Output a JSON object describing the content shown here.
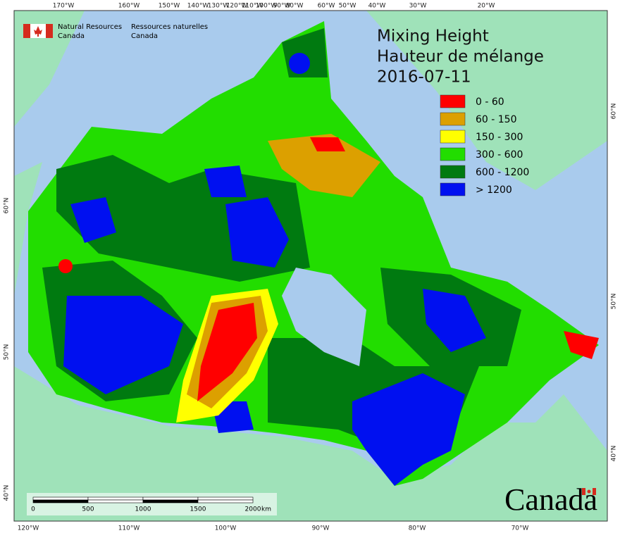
{
  "header": {
    "org_en": [
      "Natural Resources",
      "Canada"
    ],
    "org_fr": [
      "Ressources naturelles",
      "Canada"
    ]
  },
  "title": [
    "Mixing Height",
    "Hauteur de mélange",
    "2016-07-11"
  ],
  "legend": [
    {
      "label": "0 - 60",
      "color": "#ff0000"
    },
    {
      "label": "60 - 150",
      "color": "#dca000"
    },
    {
      "label": "150 - 300",
      "color": "#ffff00"
    },
    {
      "label": "300 - 600",
      "color": "#22dd00"
    },
    {
      "label": "600 - 1200",
      "color": "#007a10"
    },
    {
      "label": "> 1200",
      "color": "#0010f0"
    }
  ],
  "top_ticks": [
    "170°W",
    "160°W",
    "150°W",
    "140°W",
    "130°W",
    "120°W",
    "110°W",
    "100°W",
    "90°W",
    "80°W",
    "60°W",
    "50°W",
    "40°W",
    "30°W",
    "20°W"
  ],
  "bottom_ticks": [
    "120°W",
    "110°W",
    "100°W",
    "90°W",
    "80°W",
    "70°W"
  ],
  "left_ticks": [
    "60°N",
    "50°N",
    "40°N"
  ],
  "right_ticks": [
    "60°N",
    "50°N",
    "40°N"
  ],
  "scale": {
    "labels": [
      "0",
      "500",
      "1000",
      "1500",
      "2000"
    ],
    "unit": "km"
  },
  "wordmark": "Canada"
}
